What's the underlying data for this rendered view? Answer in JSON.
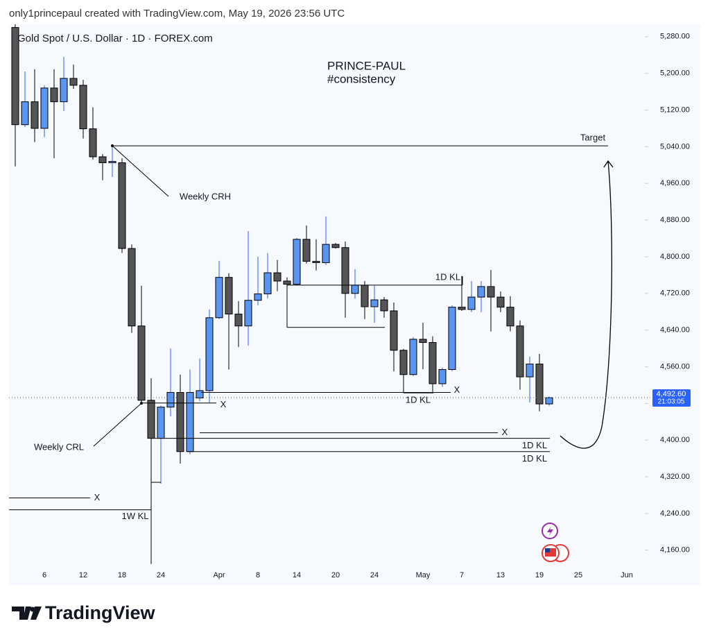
{
  "header": "only1princepaul created with TradingView.com, May 19, 2026 23:56 UTC",
  "logo": "TradingView",
  "chart_data": {
    "type": "candlestick",
    "title": "Gold Spot / U.S. Dollar · 1D · FOREX.com",
    "watermark": [
      "PRINCE-PAUL",
      "#consistency"
    ],
    "categories": [
      null,
      null,
      null,
      "6",
      null,
      null,
      null,
      "12",
      null,
      null,
      null,
      "18",
      null,
      null,
      null,
      "24",
      null,
      null,
      null,
      null,
      null,
      "Apr",
      null,
      null,
      null,
      "8",
      null,
      null,
      null,
      "14",
      null,
      null,
      null,
      "20",
      null,
      null,
      null,
      "24",
      null,
      null,
      null,
      null,
      "May",
      null,
      null,
      null,
      "7",
      null,
      null,
      null,
      "13",
      null,
      null,
      null,
      "19",
      null,
      null,
      null,
      "25",
      null,
      null,
      null,
      null,
      "Jun"
    ],
    "open": [
      5300,
      5088,
      5138,
      5080,
      5168,
      5138,
      5189,
      5174,
      5079,
      5018,
      5005,
      5005,
      4818,
      4649,
      4487,
      4404,
      4472,
      4504,
      4375,
      4492,
      4508,
      4667,
      4755,
      4675,
      4649,
      4705,
      4719,
      4765,
      4747,
      4740,
      4838,
      4790,
      4787,
      4827,
      4820,
      4720,
      4738,
      4691,
      4706,
      4682,
      4596,
      4543,
      4620,
      4613,
      4523,
      4554,
      4690,
      4685,
      4712,
      4735,
      4712,
      4690,
      4649,
      4538,
      4566,
      4479,
      null,
      null,
      null,
      null,
      null,
      null,
      null,
      null
    ],
    "high": [
      5330,
      5204,
      5209,
      5174,
      5209,
      5236,
      5219,
      5186,
      5126,
      5024,
      5045,
      5015,
      4827,
      4737,
      4535,
      4475,
      4600,
      4543,
      4554,
      4578,
      4685,
      4791,
      4764,
      4703,
      4856,
      4800,
      4808,
      4793,
      4755,
      4841,
      4868,
      4838,
      4888,
      4830,
      4833,
      4773,
      4747,
      4737,
      4712,
      4700,
      4599,
      4625,
      4656,
      4626,
      4558,
      4694,
      4758,
      4747,
      4747,
      4771,
      4724,
      4714,
      4661,
      4582,
      4588,
      4495,
      null,
      null,
      null,
      null,
      null,
      null,
      null,
      null
    ],
    "low": [
      4997,
      5083,
      5050,
      5061,
      5015,
      5118,
      5166,
      5058,
      5012,
      4967,
      4974,
      4808,
      4634,
      4482,
      4130,
      4305,
      4452,
      4349,
      4369,
      4485,
      4482,
      4664,
      4554,
      4603,
      4606,
      4694,
      4709,
      4725,
      4735,
      4737,
      4785,
      4770,
      4782,
      4818,
      4667,
      4709,
      4664,
      4656,
      4667,
      4550,
      4505,
      4540,
      4555,
      4502,
      4516,
      4550,
      4682,
      4679,
      4679,
      4637,
      4679,
      4637,
      4510,
      4482,
      4463,
      4475,
      null,
      null,
      null,
      null,
      null,
      null,
      null,
      null
    ],
    "close": [
      5088,
      5138,
      5080,
      5168,
      5138,
      5189,
      5174,
      5079,
      5018,
      5005,
      5008,
      4818,
      4649,
      4487,
      4404,
      4472,
      4504,
      4375,
      4504,
      4508,
      4667,
      4755,
      4675,
      4649,
      4705,
      4719,
      4765,
      4747,
      4740,
      4838,
      4790,
      4787,
      4827,
      4820,
      4720,
      4738,
      4691,
      4706,
      4682,
      4596,
      4543,
      4620,
      4613,
      4523,
      4554,
      4690,
      4685,
      4712,
      4735,
      4712,
      4690,
      4649,
      4538,
      4566,
      4479,
      4492.6,
      null,
      null,
      null,
      null,
      null,
      null,
      null,
      null
    ],
    "up_color": "#5b95f2",
    "down_color": "#555555",
    "up_wick": "#2962ff",
    "down_wick": "#000000",
    "last_price_label": "4,492.60",
    "countdown": "21:03:05",
    "ylim": [
      4084,
      5307
    ],
    "yticks": [
      {
        "value": 5280,
        "label": "5,280.00"
      },
      {
        "value": 5200,
        "label": "5,200.00"
      },
      {
        "value": 5120,
        "label": "5,120.00"
      },
      {
        "value": 5040,
        "label": "5,040.00"
      },
      {
        "value": 4960,
        "label": "4,960.00"
      },
      {
        "value": 4880,
        "label": "4,880.00"
      },
      {
        "value": 4800,
        "label": "4,800.00"
      },
      {
        "value": 4720,
        "label": "4,720.00"
      },
      {
        "value": 4640,
        "label": "4,640.00"
      },
      {
        "value": 4560,
        "label": "4,560.00"
      },
      {
        "value": 4480,
        "label": "4,480.00"
      },
      {
        "value": 4400,
        "label": "4,400.00"
      },
      {
        "value": 4320,
        "label": "4,320.00"
      },
      {
        "value": 4240,
        "label": "4,240.00"
      },
      {
        "value": 4160,
        "label": "4,160.00"
      }
    ],
    "annotations": [
      {
        "text": "Target",
        "price": 5042
      },
      {
        "text": "Weekly CRH"
      },
      {
        "text": "Weekly CRL"
      },
      {
        "text": "X",
        "price": 4481
      },
      {
        "text": "1D KL",
        "price": 4738
      },
      {
        "price": 4646
      },
      {
        "text": "X",
        "price": 4504
      },
      {
        "text": "1D KL",
        "price": 4503
      },
      {
        "text": "X",
        "price": 4416
      },
      {
        "text": "1D KL",
        "price": 4404
      },
      {
        "text": "1D KL",
        "price": 4375
      },
      {
        "text": "X",
        "price": 4274
      },
      {
        "text": "1W KL",
        "price": 4248
      }
    ]
  }
}
